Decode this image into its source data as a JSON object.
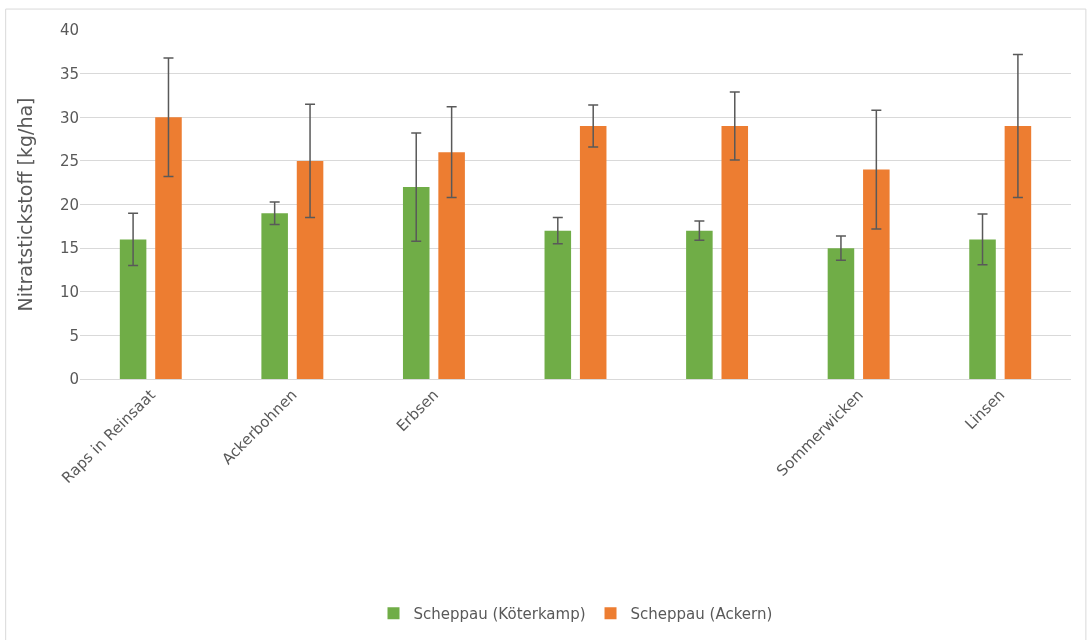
{
  "chart_data": {
    "type": "bar",
    "ylabel": "Nitratstickstoff [kg/ha]",
    "categories": [
      "Raps in Reinsaat",
      "Ackerbohnen",
      "Erbsen",
      null,
      null,
      "Sommerwicken",
      "Linsen"
    ],
    "series": [
      {
        "name": "Scheppau (Köterkamp)",
        "color": "#70ad47",
        "values": [
          16,
          19,
          22,
          17,
          17,
          15,
          16
        ],
        "errors": [
          3,
          1.3,
          6.2,
          1.5,
          1.1,
          1.4,
          2.9
        ]
      },
      {
        "name": "Scheppau (Ackern)",
        "color": "#ed7d31",
        "values": [
          30,
          25,
          26,
          29,
          29,
          24,
          29
        ],
        "errors": [
          6.8,
          6.5,
          5.2,
          2.4,
          3.9,
          6.8,
          8.2
        ]
      }
    ],
    "ylim": [
      0,
      40
    ],
    "yticks": [
      0,
      5,
      10,
      15,
      20,
      25,
      30,
      35,
      40
    ],
    "grid": "y",
    "legend": "bottom"
  }
}
